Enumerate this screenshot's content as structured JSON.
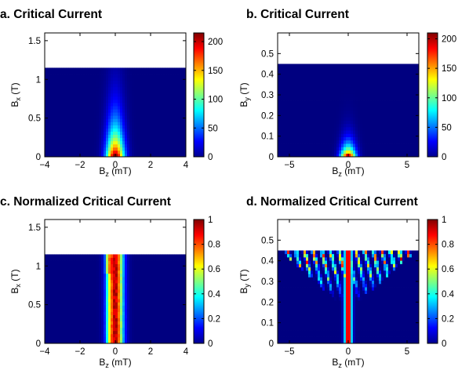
{
  "colors": {
    "background": "#ffffff",
    "colormap": "jet",
    "low": "#00008f",
    "high": "#800000"
  },
  "chart_data": [
    {
      "type": "heatmap",
      "id": "a",
      "title": "a. Critical Current",
      "xlabel": "B_z (mT)",
      "xlabel_main": "B",
      "xlabel_sub": "z",
      "xlabel_unit": "(mT)",
      "ylabel": "B_x (T)",
      "ylabel_main": "B",
      "ylabel_sub": "x",
      "ylabel_unit": "(T)",
      "xlim": [
        -4,
        4
      ],
      "ylim": [
        0,
        1.6
      ],
      "xticks": [
        -4,
        -2,
        0,
        2,
        4
      ],
      "yticks": [
        0,
        0.5,
        1,
        1.5
      ],
      "xtick_labels": [
        "−4",
        "−2",
        "0",
        "2",
        "4"
      ],
      "ytick_labels": [
        "0",
        "0.5",
        "1",
        "1.5"
      ],
      "data_ymax": 1.15,
      "colorbar": {
        "min": 0,
        "max": 215,
        "ticks": [
          0,
          50,
          100,
          150,
          200
        ],
        "tick_labels": [
          "0",
          "50",
          "100",
          "150",
          "200"
        ]
      },
      "pattern": "ridge_decay",
      "peak_value": 215,
      "ridge_center_x": 0,
      "ridge_width_x": 0.35,
      "decay_scale_y": 0.35
    },
    {
      "type": "heatmap",
      "id": "b",
      "title": "b. Critical Current",
      "xlabel": "B_z (mT)",
      "xlabel_main": "B",
      "xlabel_sub": "z",
      "xlabel_unit": "(mT)",
      "ylabel": "B_y (T)",
      "ylabel_main": "B",
      "ylabel_sub": "y",
      "ylabel_unit": "(T)",
      "xlim": [
        -6,
        6
      ],
      "ylim": [
        0,
        0.6
      ],
      "xticks": [
        -5,
        0,
        5
      ],
      "yticks": [
        0,
        0.1,
        0.2,
        0.3,
        0.4,
        0.5
      ],
      "xtick_labels": [
        "−5",
        "0",
        "5"
      ],
      "ytick_labels": [
        "0",
        "0.1",
        "0.2",
        "0.3",
        "0.4",
        "0.5"
      ],
      "data_ymax": 0.45,
      "colorbar": {
        "min": 0,
        "max": 210,
        "ticks": [
          0,
          50,
          100,
          150,
          200
        ],
        "tick_labels": [
          "0",
          "50",
          "100",
          "150",
          "200"
        ]
      },
      "pattern": "ridge_decay",
      "peak_value": 210,
      "ridge_center_x": 0,
      "ridge_width_x": 0.45,
      "decay_scale_y": 0.05
    },
    {
      "type": "heatmap",
      "id": "c",
      "title": "c. Normalized Critical Current",
      "xlabel": "B_z (mT)",
      "xlabel_main": "B",
      "xlabel_sub": "z",
      "xlabel_unit": "(mT)",
      "ylabel": "B_x (T)",
      "ylabel_main": "B",
      "ylabel_sub": "x",
      "ylabel_unit": "(T)",
      "xlim": [
        -4,
        4
      ],
      "ylim": [
        0,
        1.6
      ],
      "xticks": [
        -4,
        -2,
        0,
        2,
        4
      ],
      "yticks": [
        0,
        0.5,
        1,
        1.5
      ],
      "xtick_labels": [
        "−4",
        "−2",
        "0",
        "2",
        "4"
      ],
      "ytick_labels": [
        "0",
        "0.5",
        "1",
        "1.5"
      ],
      "data_ymax": 1.15,
      "colorbar": {
        "min": 0,
        "max": 1,
        "ticks": [
          0,
          0.2,
          0.4,
          0.6,
          0.8,
          1
        ],
        "tick_labels": [
          "0",
          "0.2",
          "0.4",
          "0.6",
          "0.8",
          "1"
        ]
      },
      "pattern": "normalized_ridge",
      "peak_value": 1,
      "ridge_center_x": 0,
      "ridge_width_x": 0.3
    },
    {
      "type": "heatmap",
      "id": "d",
      "title": "d.  Normalized Critical Current",
      "xlabel": "B_z (mT)",
      "xlabel_main": "B",
      "xlabel_sub": "z",
      "xlabel_unit": "(mT)",
      "ylabel": "B_y (T)",
      "ylabel_main": "B",
      "ylabel_sub": "y",
      "ylabel_unit": "(T)",
      "xlim": [
        -6,
        6
      ],
      "ylim": [
        0,
        0.6
      ],
      "xticks": [
        -5,
        0,
        5
      ],
      "yticks": [
        0,
        0.1,
        0.2,
        0.3,
        0.4,
        0.5
      ],
      "xtick_labels": [
        "−5",
        "0",
        "5"
      ],
      "ytick_labels": [
        "0",
        "0.1",
        "0.2",
        "0.3",
        "0.4",
        "0.5"
      ],
      "data_ymax": 0.45,
      "colorbar": {
        "min": 0,
        "max": 1,
        "ticks": [
          0,
          0.2,
          0.4,
          0.6,
          0.8,
          1
        ],
        "tick_labels": [
          "0",
          "0.2",
          "0.4",
          "0.6",
          "0.8",
          "1"
        ]
      },
      "pattern": "fan",
      "peak_value": 1,
      "ridge_center_x": 0,
      "ridge_width_x": 0.2
    }
  ]
}
